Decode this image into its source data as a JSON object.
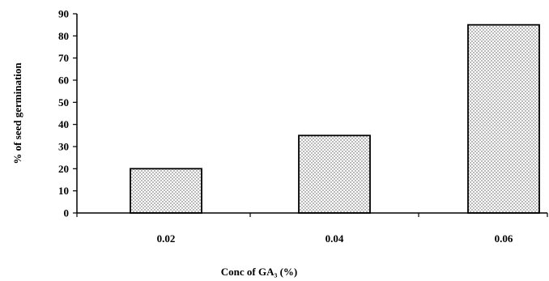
{
  "chart_data": {
    "type": "bar",
    "categories": [
      "0.02",
      "0.04",
      "0.06"
    ],
    "values": [
      20,
      35,
      85
    ],
    "xlabel": "Conc of GA₃ (%)",
    "ylabel": "% of seed germination",
    "ylim": [
      0,
      90
    ],
    "yticks": [
      "0",
      "10",
      "20",
      "30",
      "40",
      "50",
      "60",
      "70",
      "80",
      "90"
    ],
    "grid": false,
    "legend": "none",
    "bar_fill": "#d9d9d9",
    "bar_edge": "#000000"
  }
}
